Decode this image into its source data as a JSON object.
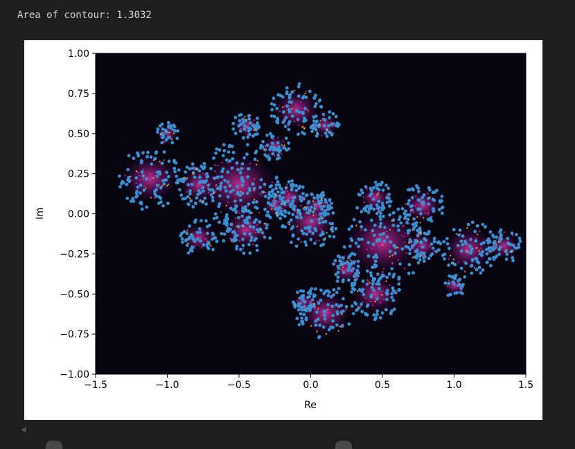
{
  "output": {
    "text": "Area of contour: 1.3032"
  },
  "chart_data": {
    "type": "scatter",
    "xlabel": "Re",
    "ylabel": "Im",
    "xlim": [
      -1.5,
      1.5
    ],
    "ylim": [
      -1.0,
      1.0
    ],
    "x_ticks": [
      "−1.5",
      "−1.0",
      "−0.5",
      "0.0",
      "0.5",
      "1.0",
      "1.5"
    ],
    "y_ticks": [
      "1.00",
      "0.75",
      "0.50",
      "0.25",
      "0.00",
      "−0.25",
      "−0.50",
      "−0.75",
      "−1.00"
    ],
    "background_color": "#05040f",
    "point_color": "#3b8fd1",
    "glow_color": "#b0208f",
    "highlight_color": "#f4a23a",
    "clusters": [
      {
        "x": -1.12,
        "y": 0.22,
        "r": 0.22
      },
      {
        "x": -1.0,
        "y": 0.5,
        "r": 0.08
      },
      {
        "x": -0.78,
        "y": 0.18,
        "r": 0.16
      },
      {
        "x": -0.78,
        "y": -0.15,
        "r": 0.13
      },
      {
        "x": -0.5,
        "y": 0.18,
        "r": 0.3
      },
      {
        "x": -0.45,
        "y": -0.1,
        "r": 0.18
      },
      {
        "x": -0.45,
        "y": 0.55,
        "r": 0.1
      },
      {
        "x": -0.25,
        "y": 0.42,
        "r": 0.1
      },
      {
        "x": -0.1,
        "y": 0.65,
        "r": 0.18
      },
      {
        "x": 0.1,
        "y": 0.55,
        "r": 0.1
      },
      {
        "x": -0.15,
        "y": 0.1,
        "r": 0.13
      },
      {
        "x": 0.0,
        "y": -0.05,
        "r": 0.2
      },
      {
        "x": 0.05,
        "y": 0.05,
        "r": 0.1
      },
      {
        "x": 0.5,
        "y": -0.18,
        "r": 0.3
      },
      {
        "x": 0.45,
        "y": 0.1,
        "r": 0.12
      },
      {
        "x": 0.78,
        "y": 0.05,
        "r": 0.15
      },
      {
        "x": 0.78,
        "y": -0.2,
        "r": 0.12
      },
      {
        "x": 0.45,
        "y": -0.5,
        "r": 0.18
      },
      {
        "x": 0.1,
        "y": -0.62,
        "r": 0.2
      },
      {
        "x": -0.05,
        "y": -0.55,
        "r": 0.08
      },
      {
        "x": 1.1,
        "y": -0.22,
        "r": 0.2
      },
      {
        "x": 1.35,
        "y": -0.2,
        "r": 0.12
      },
      {
        "x": 1.0,
        "y": -0.45,
        "r": 0.08
      },
      {
        "x": 0.25,
        "y": -0.35,
        "r": 0.12
      },
      {
        "x": -0.25,
        "y": 0.05,
        "r": 0.1
      }
    ]
  }
}
